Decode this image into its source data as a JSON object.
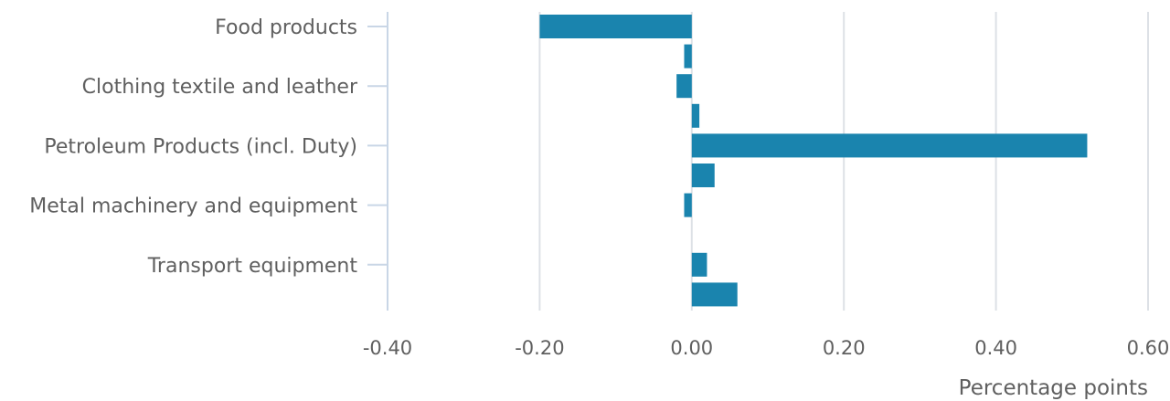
{
  "chart_data": {
    "type": "bar",
    "orientation": "horizontal",
    "xlabel": "Percentage points",
    "xlim": [
      -0.4,
      0.6
    ],
    "x_ticks": [
      -0.4,
      -0.2,
      0.0,
      0.2,
      0.4,
      0.6
    ],
    "x_tick_labels": [
      "-0.40",
      "-0.20",
      "0.00",
      "0.20",
      "0.40",
      "0.60"
    ],
    "grid": "vertical",
    "categories": [
      "Food products",
      "Clothing textile and leather",
      "Petroleum Products (incl. Duty)",
      "Metal machinery and equipment",
      "Transport equipment"
    ],
    "rows": [
      {
        "category": "Food products",
        "position": "on-label",
        "value": -0.2
      },
      {
        "category": "",
        "position": "between",
        "value": -0.01
      },
      {
        "category": "Clothing textile and leather",
        "position": "on-label",
        "value": -0.02
      },
      {
        "category": "",
        "position": "between",
        "value": 0.01
      },
      {
        "category": "Petroleum Products (incl. Duty)",
        "position": "on-label",
        "value": 0.52
      },
      {
        "category": "",
        "position": "between",
        "value": 0.03
      },
      {
        "category": "Metal machinery and equipment",
        "position": "on-label",
        "value": -0.01
      },
      {
        "category": "",
        "position": "between",
        "value": 0.0
      },
      {
        "category": "Transport equipment",
        "position": "on-label",
        "value": 0.02
      },
      {
        "category": "",
        "position": "between",
        "value": 0.06
      }
    ],
    "colors": {
      "bar": "#1a84ae",
      "grid": "#dde1e6",
      "axis": "#c9d6e6",
      "text": "#5f5f5f"
    }
  }
}
